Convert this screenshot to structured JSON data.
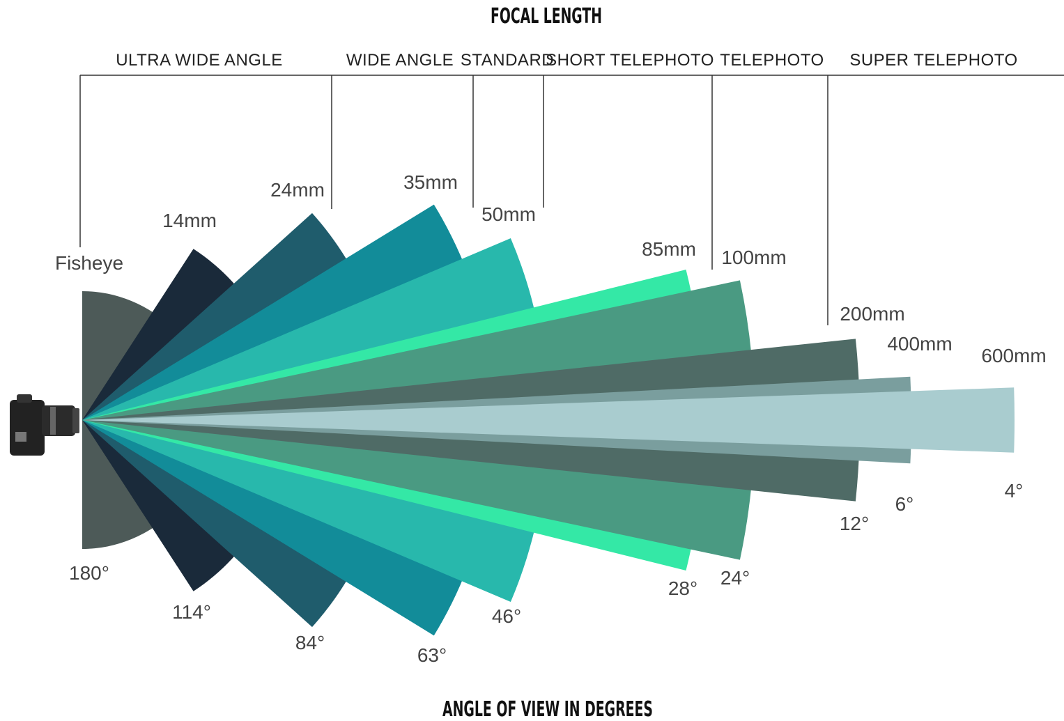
{
  "title": "FOCAL LENGTH",
  "footer": "ANGLE OF VIEW IN DEGREES",
  "categories": [
    "ULTRA WIDE ANGLE",
    "WIDE ANGLE",
    "STANDARD",
    "SHORT TELEPHOTO",
    "TELEPHOTO",
    "SUPER TELEPHOTO"
  ],
  "lenses": [
    {
      "label": "Fisheye",
      "angle": 180,
      "angle_label": "180°",
      "color": "#4d5a58"
    },
    {
      "label": "14mm",
      "angle": 114,
      "angle_label": "114°",
      "color": "#1a2a3a"
    },
    {
      "label": "24mm",
      "angle": 84,
      "angle_label": "84°",
      "color": "#1f5c6c"
    },
    {
      "label": "35mm",
      "angle": 63,
      "angle_label": "63°",
      "color": "#128c99"
    },
    {
      "label": "50mm",
      "angle": 46,
      "angle_label": "46°",
      "color": "#28b8ac"
    },
    {
      "label": "85mm",
      "angle": 28,
      "angle_label": "28°",
      "color": "#34e8a6"
    },
    {
      "label": "100mm",
      "angle": 24,
      "angle_label": "24°",
      "color": "#4a9a82"
    },
    {
      "label": "200mm",
      "angle": 12,
      "angle_label": "12°",
      "color": "#4f6b66"
    },
    {
      "label": "400mm",
      "angle": 6,
      "angle_label": "6°",
      "color": "#7a9e9e"
    },
    {
      "label": "600mm",
      "angle": 4,
      "angle_label": "4°",
      "color": "#a9cccf"
    }
  ]
}
